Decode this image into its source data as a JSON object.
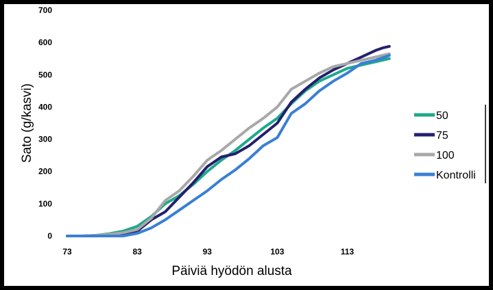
{
  "chart_data": {
    "type": "line",
    "xlabel": "Päiviä hyödön alusta",
    "ylabel": "Sato (g/kasvi)",
    "xlim": [
      73,
      120
    ],
    "ylim": [
      0,
      700
    ],
    "xticks": [
      "73",
      "83",
      "93",
      "103",
      "113"
    ],
    "yticks": [
      "0",
      "100",
      "200",
      "300",
      "400",
      "500",
      "600",
      "700"
    ],
    "grid": false,
    "legend_position": "right",
    "series": [
      {
        "name": "50",
        "color": "#1ea88c",
        "x": [
          73,
          75,
          77,
          79,
          81,
          83,
          85,
          87,
          89,
          91,
          93,
          95,
          97,
          99,
          101,
          103,
          105,
          107,
          109,
          111,
          113,
          115,
          117,
          119
        ],
        "y": [
          0,
          0,
          2,
          7,
          15,
          30,
          60,
          100,
          125,
          160,
          200,
          235,
          265,
          300,
          335,
          365,
          410,
          450,
          480,
          500,
          520,
          530,
          540,
          550
        ]
      },
      {
        "name": "75",
        "color": "#24206e",
        "x": [
          73,
          75,
          77,
          79,
          81,
          83,
          85,
          87,
          89,
          91,
          93,
          94,
          95,
          97,
          99,
          101,
          103,
          105,
          107,
          109,
          111,
          113,
          115,
          117,
          118,
          119
        ],
        "y": [
          0,
          0,
          0,
          0,
          2,
          15,
          50,
          75,
          120,
          165,
          215,
          230,
          245,
          255,
          280,
          315,
          350,
          415,
          455,
          490,
          515,
          535,
          555,
          575,
          583,
          588
        ]
      },
      {
        "name": "100",
        "color": "#a8a8a8",
        "x": [
          73,
          75,
          77,
          79,
          81,
          83,
          85,
          87,
          89,
          91,
          93,
          95,
          97,
          99,
          101,
          103,
          105,
          107,
          109,
          111,
          113,
          115,
          117,
          119
        ],
        "y": [
          0,
          0,
          2,
          5,
          10,
          20,
          55,
          110,
          140,
          185,
          235,
          265,
          300,
          335,
          365,
          400,
          455,
          480,
          505,
          525,
          535,
          545,
          555,
          565
        ]
      },
      {
        "name": "Kontrolli",
        "color": "#3a7fd5",
        "x": [
          73,
          75,
          77,
          79,
          81,
          83,
          85,
          87,
          89,
          91,
          93,
          95,
          97,
          99,
          101,
          103,
          105,
          107,
          109,
          111,
          113,
          115,
          117,
          119
        ],
        "y": [
          0,
          0,
          0,
          0,
          0,
          8,
          25,
          50,
          80,
          110,
          140,
          175,
          205,
          240,
          280,
          305,
          380,
          410,
          450,
          480,
          505,
          535,
          545,
          560
        ]
      }
    ]
  }
}
